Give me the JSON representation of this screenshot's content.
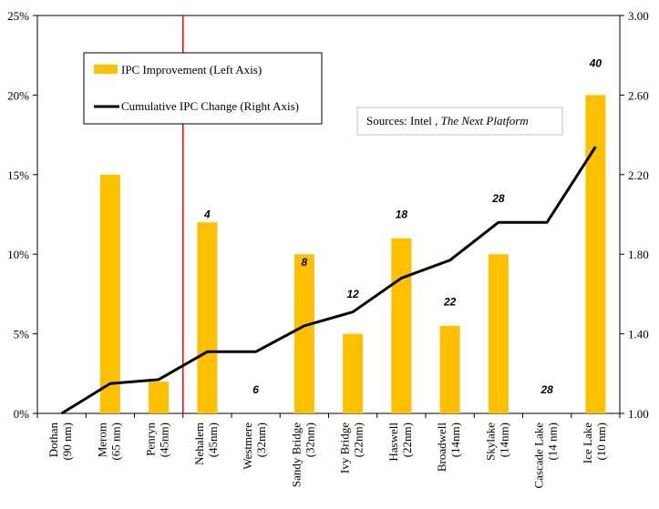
{
  "chart_data": {
    "type": "bar",
    "categories": [
      [
        "Dothan",
        "(90 nm)"
      ],
      [
        "Merom",
        "(65 nm)"
      ],
      [
        "Penryn",
        "(45nm)"
      ],
      [
        "Nehalem",
        "(45nm)"
      ],
      [
        "Westmere",
        "(32nm)"
      ],
      [
        "Sandy Bridge",
        "(32nm)"
      ],
      [
        "Ivy Bridge",
        "(22nm)"
      ],
      [
        "Haswell",
        "(22nm)"
      ],
      [
        "Broadwell",
        "(14nm)"
      ],
      [
        "Skylake",
        "(14nm)"
      ],
      [
        "Cascade Lake",
        "(14 nm)"
      ],
      [
        "Ice Lake",
        "(10 nm)"
      ]
    ],
    "series": [
      {
        "name": "IPC Improvement (Left Axis)",
        "type": "bar",
        "axis": "left",
        "color": "#FFC000",
        "values": [
          0,
          15,
          2,
          12,
          0,
          10,
          5,
          11,
          5.5,
          10,
          0,
          20
        ]
      },
      {
        "name": "Cumulative IPC Change (Right Axis)",
        "type": "line",
        "axis": "right",
        "color": "#000000",
        "values": [
          1.0,
          1.15,
          1.17,
          1.31,
          1.31,
          1.44,
          1.51,
          1.68,
          1.77,
          1.96,
          1.96,
          2.34
        ]
      }
    ],
    "data_labels": [
      "",
      "",
      "",
      "4",
      "6",
      "8",
      "12",
      "18",
      "22",
      "28",
      "28",
      "40"
    ],
    "data_label_values": [
      null,
      null,
      null,
      12.5,
      1.5,
      9.5,
      7.5,
      12.5,
      7,
      13.5,
      1.5,
      22
    ],
    "left_axis": {
      "min": 0,
      "max": 25,
      "ticks": [
        "0%",
        "5%",
        "10%",
        "15%",
        "20%",
        "25%"
      ]
    },
    "right_axis": {
      "min": 1.0,
      "max": 3.0,
      "ticks": [
        "1.00",
        "1.40",
        "1.80",
        "2.20",
        "2.60",
        "3.00"
      ]
    },
    "divider_after_index": 2,
    "divider_color": "#FF0000",
    "legend": {
      "placement": "top-left",
      "items": [
        "IPC Improvement (Left Axis)",
        "Cumulative IPC Change (Right Axis)"
      ]
    },
    "source_note": {
      "prefix": "Sources: Intel , ",
      "italic": "The Next Platform"
    },
    "grid": false
  }
}
